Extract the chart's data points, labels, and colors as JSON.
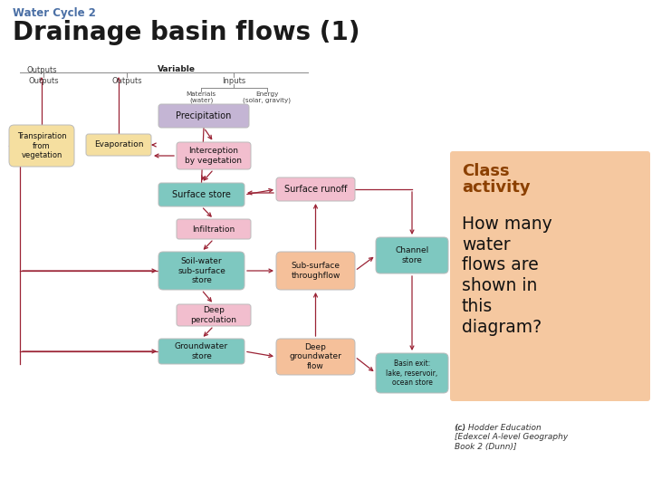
{
  "title_small": "Water Cycle 2",
  "title_large": "Drainage basin flows (1)",
  "title_small_color": "#4a6fa5",
  "title_large_color": "#1a1a1a",
  "bg_color": "#ffffff",
  "arrow_color": "#9b2335",
  "box_colors": {
    "purple": "#c4b5d4",
    "pink": "#f2bece",
    "teal": "#7ec8c0",
    "yellow": "#f5dfa0",
    "salmon": "#f5c09a",
    "peach": "#f7c59f"
  },
  "class_box_color": "#f5c8a0",
  "class_activity_color": "#8b4000",
  "class_text_color": "#111111",
  "footer_text": "(c) Hodder Education\n[Edexcel A-level Geography\nBook 2 (Dunn)]",
  "footer_color": "#333333",
  "label_color": "#444444"
}
